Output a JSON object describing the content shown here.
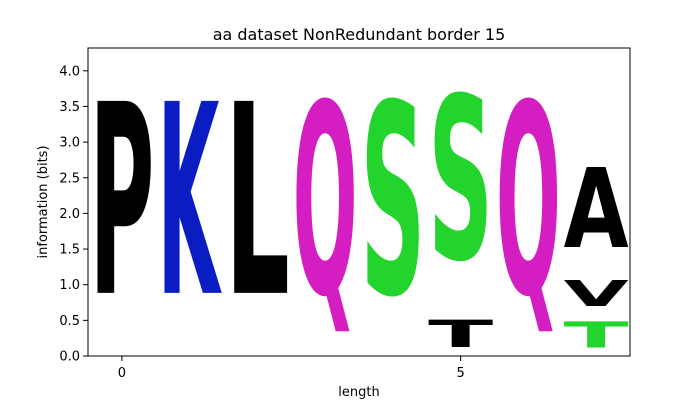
{
  "chart_data": {
    "type": "sequence-logo",
    "title": "aa dataset NonRedundant border 15",
    "xlabel": "length",
    "ylabel": "information (bits)",
    "xlim": [
      -0.5,
      7.5
    ],
    "ylim": [
      0,
      4.32
    ],
    "x_ticks": [
      0,
      5
    ],
    "y_ticks": [
      0.0,
      0.5,
      1.0,
      1.5,
      2.0,
      2.5,
      3.0,
      3.5,
      4.0
    ],
    "positions": [
      {
        "x": 0,
        "letters": [
          {
            "char": "P",
            "height": 4.32,
            "color": "#000000"
          }
        ]
      },
      {
        "x": 1,
        "letters": [
          {
            "char": "K",
            "height": 4.32,
            "color": "#0a1dc2"
          }
        ]
      },
      {
        "x": 2,
        "letters": [
          {
            "char": "L",
            "height": 4.32,
            "color": "#000000"
          }
        ]
      },
      {
        "x": 3,
        "letters": [
          {
            "char": "Q",
            "height": 4.32,
            "color": "#d41ec2"
          }
        ]
      },
      {
        "x": 4,
        "letters": [
          {
            "char": "S",
            "height": 4.32,
            "color": "#22d42c"
          }
        ]
      },
      {
        "x": 5,
        "letters": [
          {
            "char": "T",
            "height": 0.62,
            "color": "#000000"
          },
          {
            "char": "S",
            "height": 3.68,
            "color": "#22d42c"
          }
        ]
      },
      {
        "x": 6,
        "letters": [
          {
            "char": "Q",
            "height": 4.32,
            "color": "#d41ec2"
          }
        ]
      },
      {
        "x": 7,
        "letters": [
          {
            "char": "T",
            "height": 0.58,
            "color": "#22d42c"
          },
          {
            "char": "V",
            "height": 0.58,
            "color": "#000000"
          },
          {
            "char": "A",
            "height": 1.8,
            "color": "#000000"
          }
        ]
      }
    ]
  }
}
